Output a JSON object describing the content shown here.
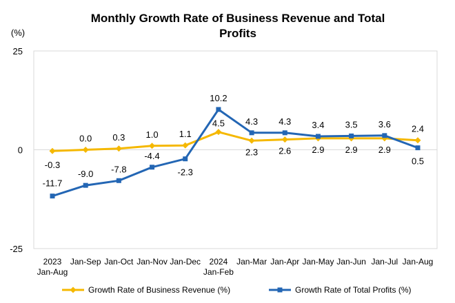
{
  "chart_data": {
    "type": "line",
    "title": "Monthly Growth Rate of Business Revenue and Total Profits",
    "title_lines": [
      "Monthly Growth Rate of Business Revenue and Total",
      "Profits"
    ],
    "ylabel": "(%)",
    "xlabel": "",
    "ylim": [
      -25,
      25
    ],
    "yticks": [
      25,
      0,
      -25
    ],
    "grid": false,
    "legend_position": "bottom",
    "categories": [
      [
        "2023",
        "Jan-Aug"
      ],
      [
        "Jan-Sep"
      ],
      [
        "Jan-Oct"
      ],
      [
        "Jan-Nov"
      ],
      [
        "Jan-Dec"
      ],
      [
        "2024",
        "Jan-Feb"
      ],
      [
        "Jan-Mar"
      ],
      [
        "Jan-Apr"
      ],
      [
        "Jan-May"
      ],
      [
        "Jan-Jun"
      ],
      [
        "Jan-Jul"
      ],
      [
        "Jan-Aug"
      ]
    ],
    "series": [
      {
        "name": "Growth Rate of Business Revenue (%)",
        "color": "#F5B800",
        "marker": "diamond",
        "values": [
          -0.3,
          0.0,
          0.3,
          1.0,
          1.1,
          4.5,
          2.3,
          2.6,
          2.9,
          2.9,
          2.9,
          2.4
        ],
        "labels": [
          "-0.3",
          "0.0",
          "0.3",
          "1.0",
          "1.1",
          "4.5",
          "2.3",
          "2.6",
          "2.9",
          "2.9",
          "2.9",
          "2.4"
        ]
      },
      {
        "name": "Growth Rate of Total Profits (%)",
        "color": "#2366B4",
        "marker": "square",
        "values": [
          -11.7,
          -9.0,
          -7.8,
          -4.4,
          -2.3,
          10.2,
          4.3,
          4.3,
          3.4,
          3.5,
          3.6,
          0.5
        ],
        "labels": [
          "-11.7",
          "-9.0",
          "-7.8",
          "-4.4",
          "-2.3",
          "10.2",
          "4.3",
          "4.3",
          "3.4",
          "3.5",
          "3.6",
          "0.5"
        ]
      }
    ]
  }
}
